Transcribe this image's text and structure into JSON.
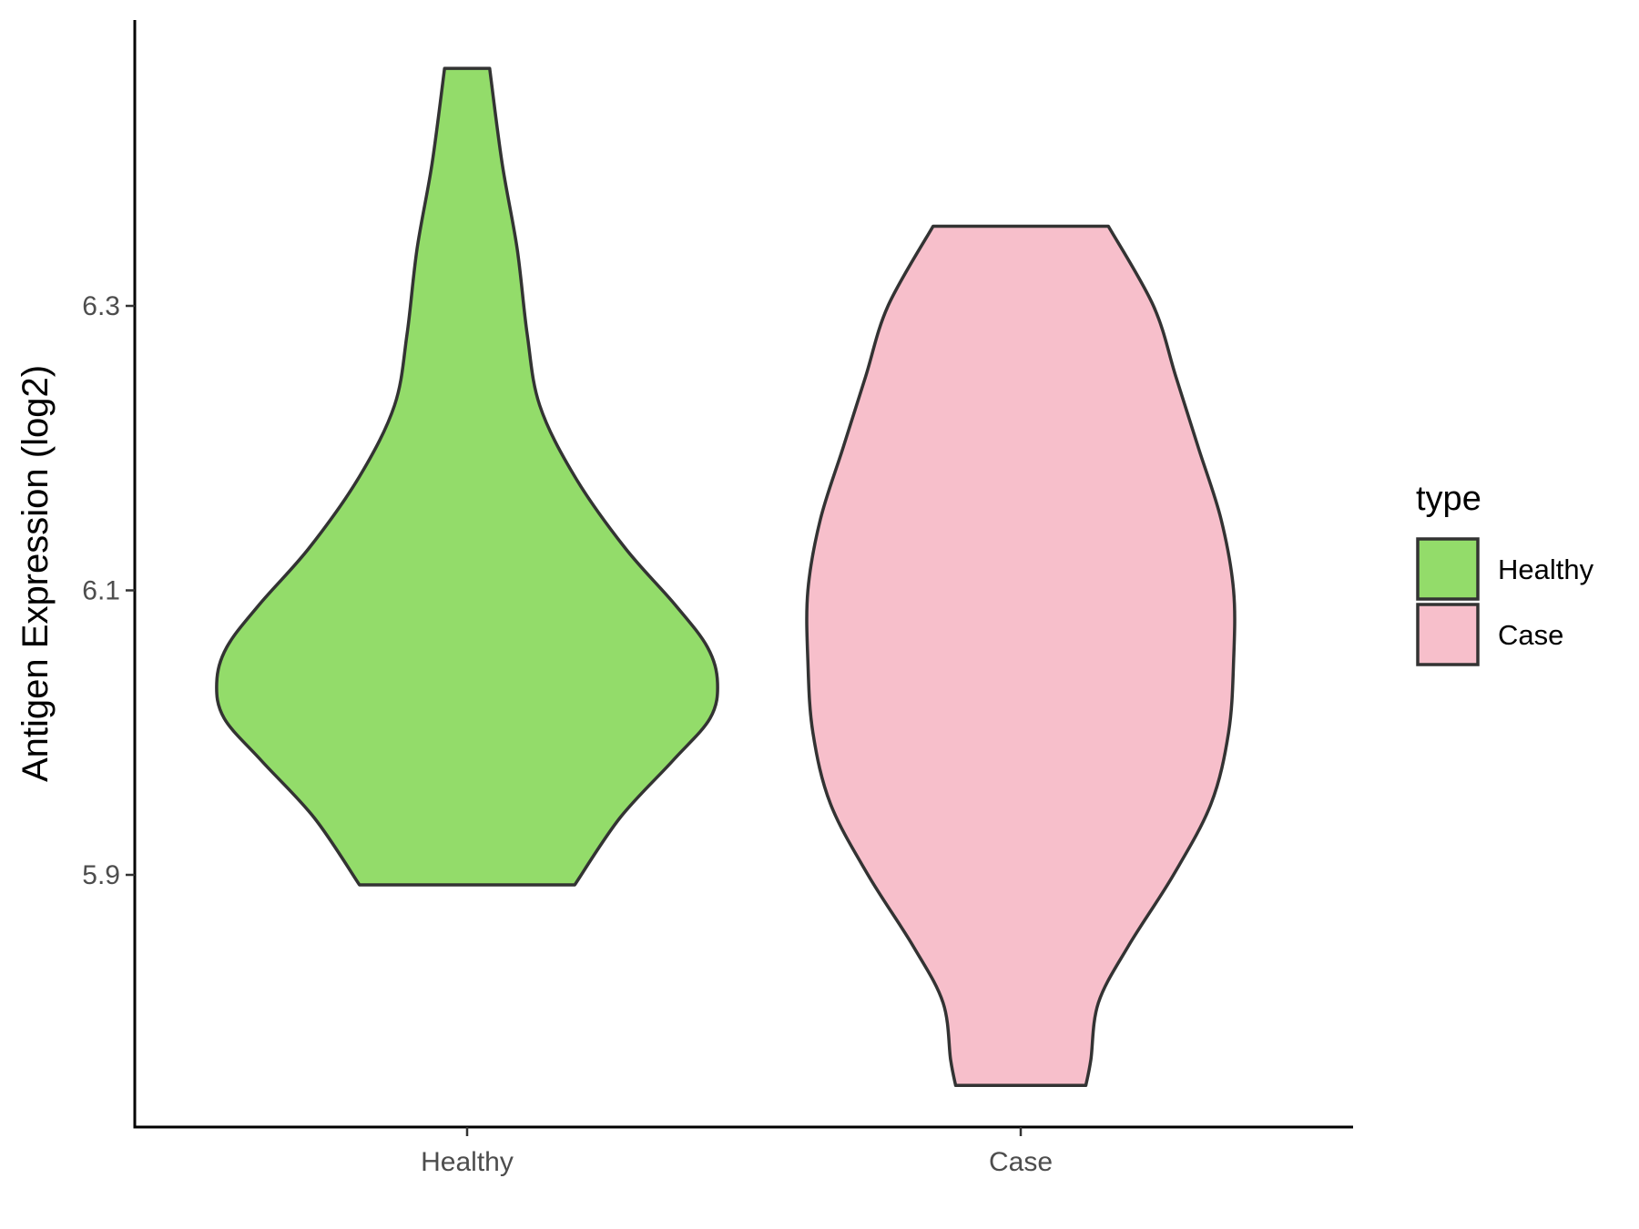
{
  "chart_data": {
    "type": "violin",
    "title": "",
    "xlabel": "",
    "ylabel": "Antigen Expression (log2)",
    "categories": [
      "Healthy",
      "Case"
    ],
    "ylim": [
      5.72,
      6.5
    ],
    "yticks": [
      5.9,
      6.1,
      6.3
    ],
    "ytick_labels": [
      "5.9",
      "6.1",
      "6.3"
    ],
    "grid": false,
    "legend": {
      "title": "type",
      "position": "right",
      "entries": [
        {
          "label": "Healthy",
          "color": "#93DC6A"
        },
        {
          "label": "Case",
          "color": "#F7BFCB"
        }
      ]
    },
    "series": [
      {
        "name": "Healthy",
        "color": "#93DC6A",
        "min": 5.893,
        "max": 6.467,
        "density": [
          [
            5.893,
            0.43
          ],
          [
            5.94,
            0.61
          ],
          [
            5.98,
            0.82
          ],
          [
            6.01,
            0.97
          ],
          [
            6.035,
            1.0
          ],
          [
            6.06,
            0.96
          ],
          [
            6.09,
            0.83
          ],
          [
            6.13,
            0.63
          ],
          [
            6.18,
            0.43
          ],
          [
            6.23,
            0.29
          ],
          [
            6.28,
            0.24
          ],
          [
            6.34,
            0.2
          ],
          [
            6.4,
            0.14
          ],
          [
            6.467,
            0.09
          ]
        ]
      },
      {
        "name": "Case",
        "color": "#F7BFCB",
        "min": 5.752,
        "max": 6.356,
        "density": [
          [
            5.752,
            0.26
          ],
          [
            5.77,
            0.28
          ],
          [
            5.81,
            0.31
          ],
          [
            5.85,
            0.43
          ],
          [
            5.9,
            0.61
          ],
          [
            5.95,
            0.76
          ],
          [
            6.0,
            0.83
          ],
          [
            6.05,
            0.85
          ],
          [
            6.1,
            0.85
          ],
          [
            6.15,
            0.8
          ],
          [
            6.2,
            0.71
          ],
          [
            6.25,
            0.62
          ],
          [
            6.3,
            0.53
          ],
          [
            6.356,
            0.35
          ]
        ]
      }
    ]
  }
}
